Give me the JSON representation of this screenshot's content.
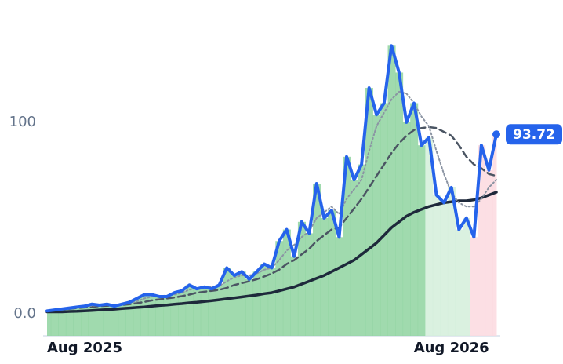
{
  "chart_data": {
    "type": "line",
    "categories": [
      "Aug 2025",
      null,
      null,
      null,
      null,
      null,
      null,
      null,
      null,
      null,
      null,
      null,
      null,
      null,
      null,
      null,
      null,
      null,
      null,
      null,
      null,
      null,
      null,
      null,
      null,
      null,
      null,
      null,
      null,
      null,
      null,
      null,
      null,
      null,
      null,
      null,
      null,
      null,
      null,
      null,
      null,
      null,
      null,
      null,
      null,
      null,
      null,
      null,
      null,
      null,
      null,
      null,
      null,
      null,
      "Aug 2026",
      null,
      null,
      null,
      null,
      null,
      null
    ],
    "ylim": [
      -11.5,
      147.5
    ],
    "yticks": [
      {
        "value": 0,
        "label": "0.0"
      },
      100
    ],
    "area_zones": [
      {
        "color": "#8fd3a0",
        "count": 51
      },
      {
        "color": "#d3eedb",
        "count": 6
      },
      {
        "color": "#fcd9df",
        "count": 4
      }
    ],
    "series": [
      {
        "color": "#2563eb",
        "style": "solid",
        "width": 4,
        "area": true,
        "values": [
          1.5,
          2,
          2.5,
          3,
          3.5,
          4,
          5,
          4.5,
          5,
          4,
          5,
          6,
          8,
          10,
          10,
          9,
          9,
          11,
          12,
          15,
          13,
          14,
          13,
          15,
          24,
          20,
          22,
          18,
          22,
          26,
          24,
          38,
          44,
          30,
          48,
          42,
          68,
          50,
          54,
          40,
          82,
          70,
          78,
          118,
          104,
          110,
          140,
          126,
          100,
          110,
          88,
          92,
          62,
          58,
          66,
          44,
          50,
          40,
          88,
          75,
          93.72
        ]
      },
      {
        "color": "#8b94a3",
        "style": "dotted",
        "width": 2,
        "values": [
          1.5,
          2,
          2.5,
          3,
          3.3,
          3.7,
          4.2,
          4.5,
          4.7,
          4.6,
          5,
          5.5,
          6.5,
          8,
          9,
          9.3,
          9.5,
          10,
          11,
          12.5,
          13.5,
          14,
          14,
          14.5,
          17,
          19,
          20,
          20,
          21,
          23,
          24,
          28,
          33,
          36,
          40,
          43,
          50,
          53,
          56,
          52,
          60,
          65,
          70,
          85,
          98,
          105,
          112,
          116,
          115,
          110,
          103,
          98,
          85,
          73,
          63,
          58,
          56,
          56,
          60,
          66,
          70
        ]
      },
      {
        "color": "#4b5563",
        "style": "dashed",
        "width": 2.5,
        "values": [
          1.5,
          2,
          2.3,
          2.6,
          3,
          3.3,
          3.6,
          4,
          4.2,
          4.4,
          4.6,
          5,
          5.5,
          6.2,
          7,
          7.5,
          8,
          8.5,
          9.2,
          10,
          11,
          11.5,
          12,
          12.5,
          13.5,
          15,
          16,
          17,
          18,
          19.5,
          21,
          23,
          26,
          28,
          31,
          34,
          38,
          41,
          44,
          45,
          50,
          55,
          60,
          66,
          72,
          78,
          84,
          89,
          93,
          96,
          97,
          97.5,
          97,
          95,
          93,
          88,
          82,
          78,
          76,
          73,
          72
        ]
      },
      {
        "color": "#1e293b",
        "style": "solid",
        "width": 3.5,
        "values": [
          1,
          1,
          1,
          1.2,
          1.3,
          1.5,
          1.7,
          2,
          2.2,
          2.4,
          2.7,
          3,
          3.3,
          3.6,
          4,
          4.3,
          4.6,
          5,
          5.3,
          5.7,
          6,
          6.4,
          6.8,
          7.3,
          7.8,
          8.3,
          8.8,
          9.3,
          9.8,
          10.5,
          11,
          12,
          13,
          14,
          15.5,
          17,
          18.5,
          20,
          22,
          24,
          26,
          28,
          31,
          34,
          37,
          41,
          45,
          48,
          51,
          53,
          54.5,
          56,
          57,
          58,
          58.5,
          59,
          59,
          59.5,
          60.5,
          62,
          63.5
        ]
      }
    ],
    "last_value_badge": true
  }
}
